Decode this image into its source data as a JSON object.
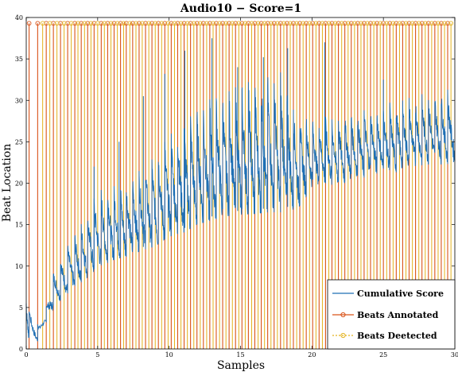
{
  "chart_data": {
    "type": "line",
    "title": "Audio10 − Score=1",
    "xlabel": "Samples",
    "ylabel": "Beat Location",
    "xlim": [
      0,
      30
    ],
    "ylim": [
      0,
      40
    ],
    "xticks": [
      0,
      5,
      10,
      15,
      20,
      25,
      30
    ],
    "yticks": [
      0,
      5,
      10,
      15,
      20,
      25,
      30,
      35,
      40
    ],
    "grid": false,
    "legend": {
      "placement": "bottom-right",
      "entries": [
        "Cumulative Score",
        "Beats Annotated",
        "Beats Deetected"
      ]
    },
    "colors": {
      "cumulative": "#1f6fb4",
      "annotated": "#d95319",
      "detected": "#e3b21d"
    },
    "series": [
      {
        "name": "Cumulative Score",
        "style": "line",
        "envelope": [
          {
            "x": 0.0,
            "low": 1.5,
            "high": 5.5
          },
          {
            "x": 0.8,
            "low": 1.0,
            "high": 3.0
          },
          {
            "x": 1.0,
            "low": 2.2,
            "high": 3.0
          },
          {
            "x": 1.5,
            "low": 3.5,
            "high": 6.0
          },
          {
            "x": 2.0,
            "low": 5.5,
            "high": 9.5
          },
          {
            "x": 3.0,
            "low": 7.0,
            "high": 12.5
          },
          {
            "x": 4.0,
            "low": 8.5,
            "high": 15.0
          },
          {
            "x": 5.0,
            "low": 10.0,
            "high": 18.5
          },
          {
            "x": 6.0,
            "low": 11.0,
            "high": 19.0
          },
          {
            "x": 7.0,
            "low": 11.5,
            "high": 19.5
          },
          {
            "x": 8.0,
            "low": 12.2,
            "high": 21.0
          },
          {
            "x": 9.0,
            "low": 12.8,
            "high": 22.5
          },
          {
            "x": 10.0,
            "low": 14.0,
            "high": 25.0
          },
          {
            "x": 11.0,
            "low": 14.5,
            "high": 26.5
          },
          {
            "x": 12.0,
            "low": 15.5,
            "high": 28.0
          },
          {
            "x": 13.0,
            "low": 16.0,
            "high": 29.5
          },
          {
            "x": 14.0,
            "low": 16.5,
            "high": 30.0
          },
          {
            "x": 15.0,
            "low": 16.7,
            "high": 31.0
          },
          {
            "x": 16.0,
            "low": 16.8,
            "high": 31.5
          },
          {
            "x": 17.0,
            "low": 17.0,
            "high": 32.0
          },
          {
            "x": 18.0,
            "low": 17.0,
            "high": 32.5
          },
          {
            "x": 19.0,
            "low": 17.5,
            "high": 28.0
          },
          {
            "x": 20.0,
            "low": 20.0,
            "high": 27.0
          },
          {
            "x": 22.0,
            "low": 20.5,
            "high": 27.5
          },
          {
            "x": 24.0,
            "low": 21.5,
            "high": 28.5
          },
          {
            "x": 26.0,
            "low": 22.0,
            "high": 29.0
          },
          {
            "x": 28.0,
            "low": 23.0,
            "high": 30.0
          },
          {
            "x": 30.0,
            "low": 23.0,
            "high": 30.5
          }
        ],
        "spikes": [
          {
            "x": 4.75,
            "y": 22.0
          },
          {
            "x": 6.5,
            "y": 25.0
          },
          {
            "x": 8.2,
            "y": 30.5
          },
          {
            "x": 9.7,
            "y": 33.2
          },
          {
            "x": 11.1,
            "y": 36.0
          },
          {
            "x": 13.0,
            "y": 37.5
          },
          {
            "x": 14.8,
            "y": 34.0
          },
          {
            "x": 16.6,
            "y": 35.2
          },
          {
            "x": 18.3,
            "y": 36.3
          },
          {
            "x": 20.9,
            "y": 37.0
          },
          {
            "x": 25.0,
            "y": 32.5
          }
        ]
      },
      {
        "name": "Beats Annotated",
        "style": "stem",
        "value": 39.3,
        "x": [
          0.2,
          0.8,
          1.4,
          1.9,
          2.4,
          2.9,
          3.4,
          3.85,
          4.3,
          4.75,
          5.25,
          5.7,
          6.15,
          6.6,
          7.0,
          7.45,
          7.9,
          8.35,
          8.8,
          9.25,
          9.7,
          10.15,
          10.6,
          11.05,
          11.5,
          11.95,
          12.4,
          12.85,
          13.3,
          13.75,
          14.2,
          14.65,
          15.1,
          15.55,
          16.0,
          16.45,
          16.9,
          17.35,
          17.8,
          18.25,
          18.7,
          19.15,
          19.6,
          20.05,
          20.5,
          20.95,
          21.4,
          21.85,
          22.3,
          22.75,
          23.2,
          23.65,
          24.1,
          24.55,
          25.0,
          25.45,
          25.9,
          26.35,
          26.8,
          27.25,
          27.7,
          28.15,
          28.6,
          29.05,
          29.5
        ]
      },
      {
        "name": "Beats Deetected",
        "style": "stem",
        "value": 39.3,
        "x": [
          1.15,
          1.65,
          2.15,
          2.65,
          3.15,
          3.62,
          4.08,
          4.53,
          5.0,
          5.47,
          5.93,
          6.38,
          6.82,
          7.25,
          7.68,
          8.12,
          8.58,
          9.03,
          9.48,
          9.93,
          10.38,
          10.83,
          11.28,
          11.73,
          12.18,
          12.63,
          13.08,
          13.53,
          13.98,
          14.43,
          14.88,
          15.33,
          15.78,
          16.23,
          16.68,
          17.13,
          17.58,
          18.03,
          18.48,
          18.93,
          19.38,
          19.83,
          20.28,
          20.73,
          21.18,
          21.63,
          22.08,
          22.53,
          22.98,
          23.43,
          23.88,
          24.33,
          24.78,
          25.23,
          25.68,
          26.13,
          26.58,
          27.03,
          27.48,
          27.93,
          28.38,
          28.83,
          29.28,
          29.73
        ]
      }
    ]
  }
}
